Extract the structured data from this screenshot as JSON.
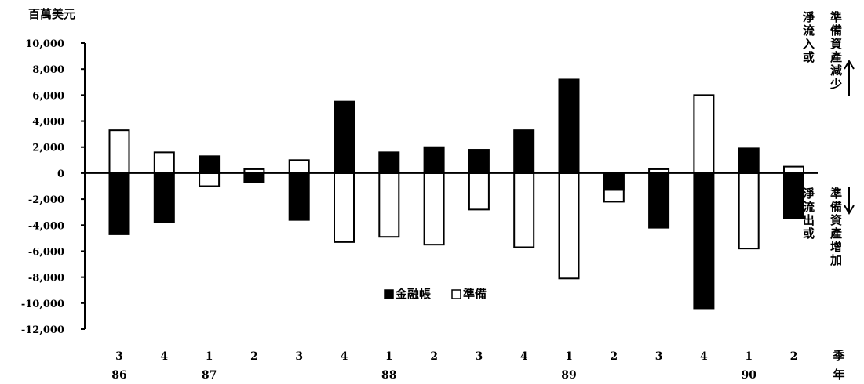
{
  "chart_data": {
    "type": "bar",
    "unit_label": "百萬美元",
    "ylim": [
      -12000,
      10000
    ],
    "y_ticks": [
      10000,
      8000,
      6000,
      4000,
      2000,
      0,
      -2000,
      -4000,
      -6000,
      -8000,
      -10000,
      -12000
    ],
    "y_tick_labels": [
      "10,000",
      "8,000",
      "6,000",
      "4,000",
      "2,000",
      "0",
      "-2,000",
      "-4,000",
      "-6,000",
      "-8,000",
      "-10,000",
      "-12,000"
    ],
    "categories": [
      "3",
      "4",
      "1",
      "2",
      "3",
      "4",
      "1",
      "2",
      "3",
      "4",
      "1",
      "2",
      "3",
      "4",
      "1",
      "2"
    ],
    "years": [
      {
        "label": "86",
        "index": 0
      },
      {
        "label": "87",
        "index": 2
      },
      {
        "label": "88",
        "index": 6
      },
      {
        "label": "89",
        "index": 10
      },
      {
        "label": "90",
        "index": 14
      }
    ],
    "x_axis_label_quarter": "季",
    "x_axis_label_year": "年",
    "legend": [
      {
        "name": "金融帳",
        "color": "#000000"
      },
      {
        "name": "準備",
        "color": "#ffffff"
      }
    ],
    "series": [
      {
        "name": "金融帳",
        "color": "#000000",
        "values": [
          -4700,
          -3800,
          1300,
          -700,
          -3600,
          5500,
          1600,
          2000,
          1800,
          3300,
          7200,
          -1300,
          -4200,
          -10400,
          1900,
          -3500
        ]
      },
      {
        "name": "準備",
        "color": "#ffffff",
        "values": [
          3300,
          1600,
          -1000,
          300,
          1000,
          -5300,
          -4900,
          -5500,
          -2800,
          -5700,
          -8100,
          -2200,
          300,
          6000,
          -5800,
          500
        ]
      }
    ],
    "annotation_top": [
      "淨流入或",
      "準備資產減少"
    ],
    "annotation_bottom": [
      "淨流出或",
      "準備資產增加"
    ]
  }
}
